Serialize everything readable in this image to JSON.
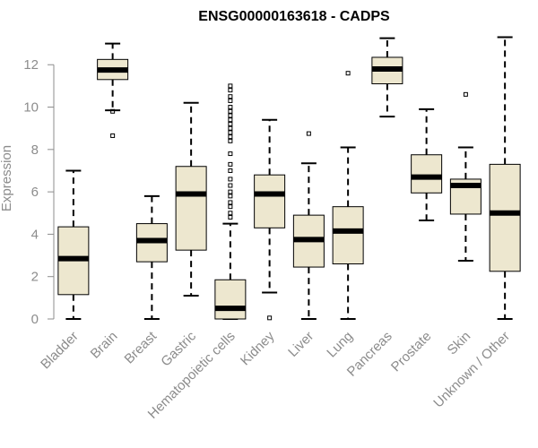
{
  "chart_data": {
    "type": "boxplot",
    "title": "ENSG00000163618 - CADPS",
    "xlabel": "",
    "ylabel": "Expression",
    "ylim": [
      0,
      13.5
    ],
    "yticks": [
      0,
      2,
      4,
      6,
      8,
      10,
      12
    ],
    "ytick_labels": [
      "0",
      "2",
      "4",
      "6",
      "8",
      "10",
      "12"
    ],
    "box_color": "#EDE7CF",
    "categories": [
      "Bladder",
      "Brain",
      "Breast",
      "Gastric",
      "Hematopoietic cells",
      "Kidney",
      "Liver",
      "Lung",
      "Pancreas",
      "Prostate",
      "Skin",
      "Unknown / Other"
    ],
    "boxes": [
      {
        "label": "Bladder",
        "min": 0.0,
        "q1": 1.15,
        "median": 2.85,
        "q3": 4.35,
        "max": 7.0,
        "outliers": []
      },
      {
        "label": "Brain",
        "min": 9.85,
        "q1": 11.3,
        "median": 11.75,
        "q3": 12.25,
        "max": 13.0,
        "outliers": [
          9.8,
          8.65
        ]
      },
      {
        "label": "Breast",
        "min": 0.0,
        "q1": 2.7,
        "median": 3.7,
        "q3": 4.5,
        "max": 5.8,
        "outliers": []
      },
      {
        "label": "Gastric",
        "min": 1.1,
        "q1": 3.25,
        "median": 5.9,
        "q3": 7.2,
        "max": 10.2,
        "outliers": []
      },
      {
        "label": "Hematopoietic cells",
        "min": 0.0,
        "q1": 0.0,
        "median": 0.5,
        "q3": 1.85,
        "max": 4.5,
        "outliers": [
          4.8,
          5.0,
          5.3,
          5.5,
          5.8,
          6.0,
          6.3,
          6.6,
          7.0,
          7.3,
          7.8,
          8.4,
          8.6,
          8.8,
          9.0,
          9.2,
          9.4,
          9.6,
          9.8,
          10.0,
          10.3,
          10.5,
          10.8,
          11.0
        ]
      },
      {
        "label": "Kidney",
        "min": 1.25,
        "q1": 4.3,
        "median": 5.9,
        "q3": 6.8,
        "max": 9.4,
        "outliers": [
          0.05
        ]
      },
      {
        "label": "Liver",
        "min": 0.0,
        "q1": 2.45,
        "median": 3.75,
        "q3": 4.9,
        "max": 7.35,
        "outliers": [
          8.75
        ]
      },
      {
        "label": "Lung",
        "min": 0.0,
        "q1": 2.6,
        "median": 4.15,
        "q3": 5.3,
        "max": 8.1,
        "outliers": [
          11.6
        ]
      },
      {
        "label": "Pancreas",
        "min": 9.55,
        "q1": 11.1,
        "median": 11.8,
        "q3": 12.35,
        "max": 13.25,
        "outliers": []
      },
      {
        "label": "Prostate",
        "min": 4.65,
        "q1": 5.95,
        "median": 6.7,
        "q3": 7.75,
        "max": 9.9,
        "outliers": []
      },
      {
        "label": "Skin",
        "min": 2.75,
        "q1": 4.95,
        "median": 6.3,
        "q3": 6.6,
        "max": 8.1,
        "outliers": [
          10.6
        ]
      },
      {
        "label": "Unknown / Other",
        "min": 0.0,
        "q1": 2.25,
        "median": 5.0,
        "q3": 7.3,
        "max": 13.3,
        "outliers": []
      }
    ]
  }
}
